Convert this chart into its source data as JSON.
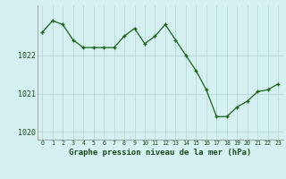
{
  "hours": [
    0,
    1,
    2,
    3,
    4,
    5,
    6,
    7,
    8,
    9,
    10,
    11,
    12,
    13,
    14,
    15,
    16,
    17,
    18,
    19,
    20,
    21,
    22,
    23
  ],
  "pressure": [
    1022.6,
    1022.9,
    1022.8,
    1022.4,
    1022.2,
    1022.2,
    1022.2,
    1022.2,
    1022.5,
    1022.7,
    1022.3,
    1022.5,
    1022.8,
    1022.4,
    1022.0,
    1021.6,
    1021.1,
    1020.4,
    1020.4,
    1020.65,
    1020.8,
    1021.05,
    1021.1,
    1021.25
  ],
  "line_color": "#1a6318",
  "marker_color": "#1a6318",
  "background_color": "#d4f0f0",
  "grid_color": "#b8d8d8",
  "ylabel_values": [
    1020,
    1021,
    1022
  ],
  "xlabel": "Graphe pression niveau de la mer (hPa)",
  "ylim": [
    1019.8,
    1023.3
  ],
  "xlim": [
    -0.5,
    23.5
  ]
}
